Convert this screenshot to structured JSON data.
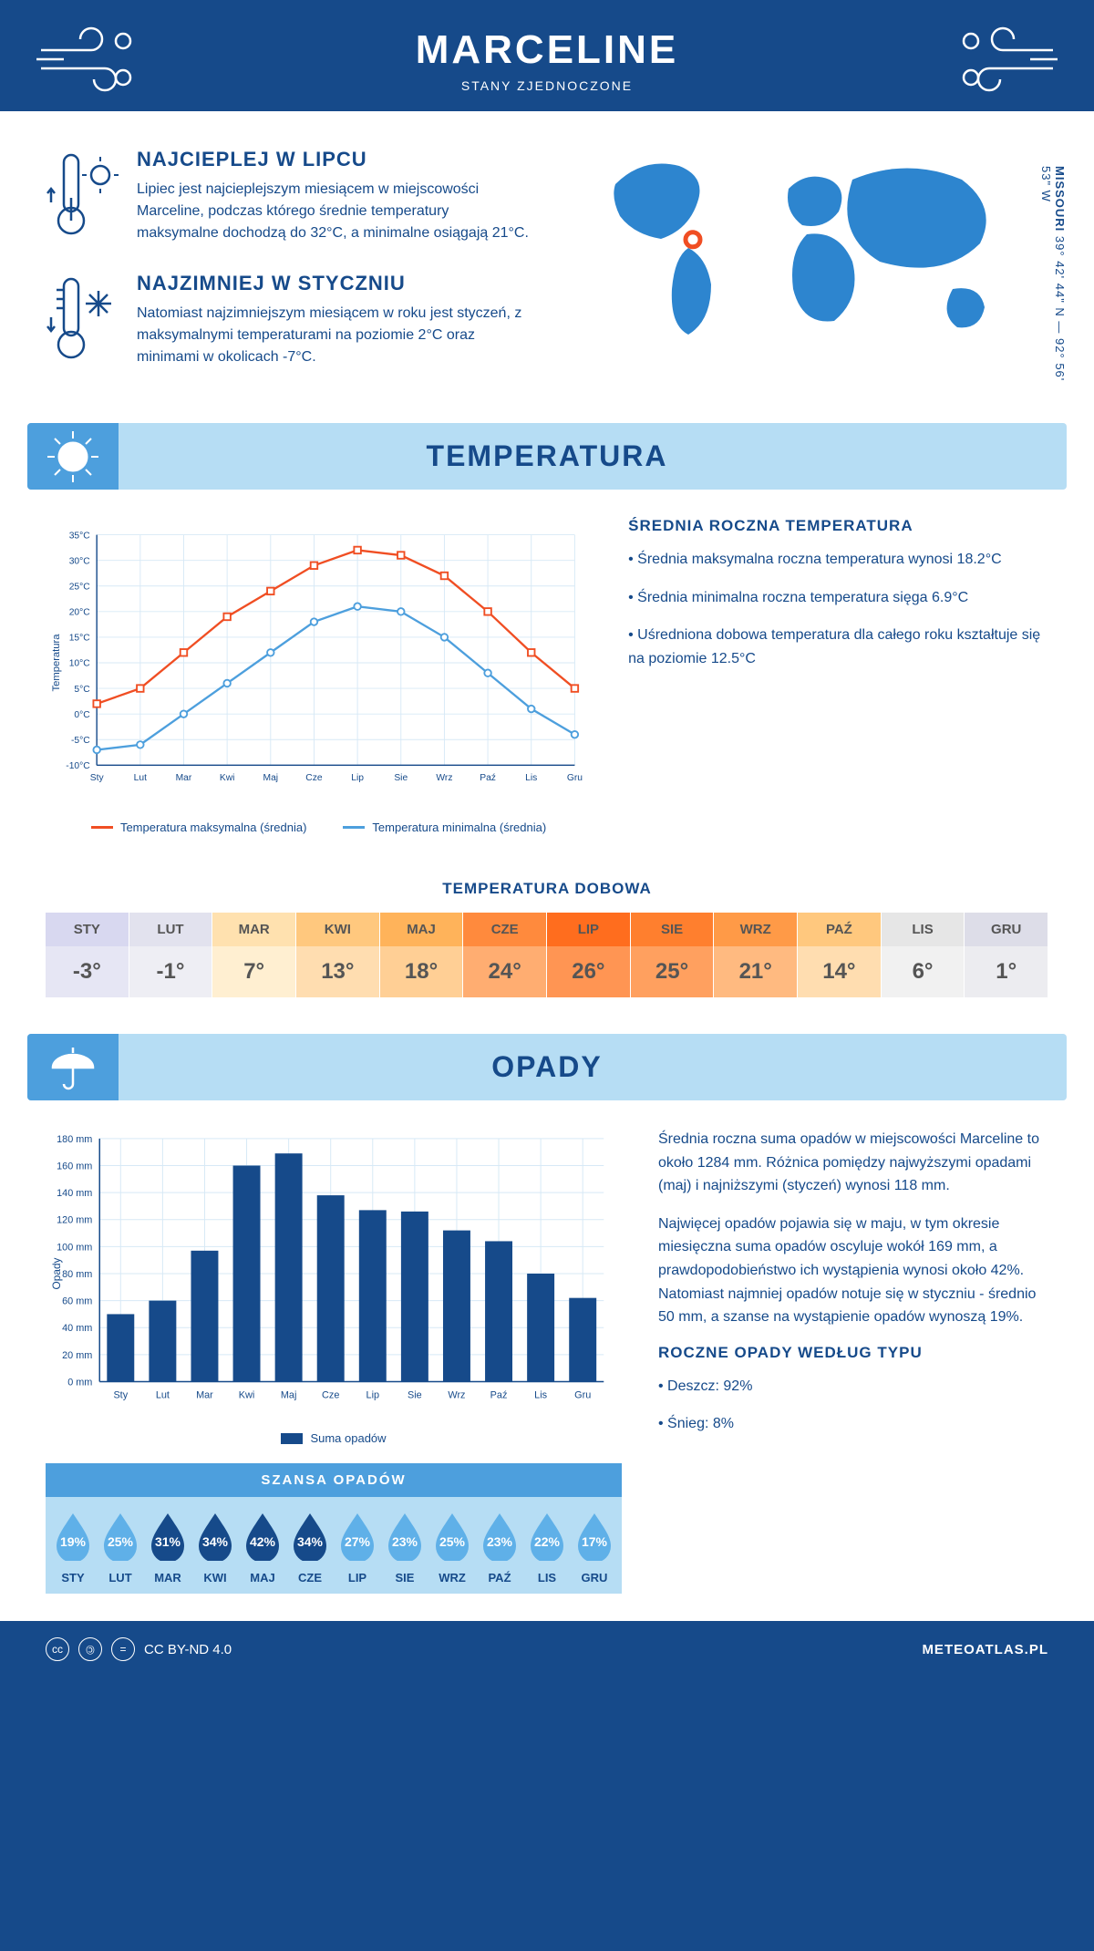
{
  "header": {
    "title": "MARCELINE",
    "subtitle": "STANY ZJEDNOCZONE",
    "swirl_stroke": "#164a8a"
  },
  "location": {
    "state": "MISSOURI",
    "coords": "39° 42' 44\" N — 92° 56' 53\" W",
    "marker": {
      "cx_pct": 25,
      "cy_pct": 42
    },
    "map_fill": "#2d85cf"
  },
  "intro": {
    "hot": {
      "title": "NAJCIEPLEJ W LIPCU",
      "body": "Lipiec jest najcieplejszym miesiącem w miejscowości Marceline, podczas którego średnie temperatury maksymalne dochodzą do 32°C, a minimalne osiągają 21°C."
    },
    "cold": {
      "title": "NAJZIMNIEJ W STYCZNIU",
      "body": "Natomiast najzimniejszym miesiącem w roku jest styczeń, z maksymalnymi temperaturami na poziomie 2°C oraz minimami w okolicach -7°C."
    }
  },
  "temperature": {
    "section_title": "TEMPERATURA",
    "summary_title": "ŚREDNIA ROCZNA TEMPERATURA",
    "bullets": [
      "• Średnia maksymalna roczna temperatura wynosi 18.2°C",
      "• Średnia minimalna roczna temperatura sięga 6.9°C",
      "• Uśredniona dobowa temperatura dla całego roku kształtuje się na poziomie 12.5°C"
    ],
    "chart": {
      "type": "line",
      "months": [
        "Sty",
        "Lut",
        "Mar",
        "Kwi",
        "Maj",
        "Cze",
        "Lip",
        "Sie",
        "Wrz",
        "Paź",
        "Lis",
        "Gru"
      ],
      "y_label": "Temperatura",
      "ylim": [
        -10,
        35
      ],
      "ytick_step": 5,
      "y_unit": "°C",
      "grid_color": "#d7e9f6",
      "axis_color": "#164a8a",
      "label_fontsize": 11,
      "series": [
        {
          "name": "Temperatura maksymalna (średnia)",
          "color": "#f04e23",
          "marker": "square",
          "values": [
            2,
            5,
            12,
            19,
            24,
            29,
            32,
            31,
            27,
            20,
            12,
            5
          ]
        },
        {
          "name": "Temperatura minimalna (średnia)",
          "color": "#4d9fdd",
          "marker": "circle",
          "values": [
            -7,
            -6,
            0,
            6,
            12,
            18,
            21,
            20,
            15,
            8,
            1,
            -4
          ]
        }
      ]
    },
    "dobowa": {
      "title": "TEMPERATURA DOBOWA",
      "months": [
        "STY",
        "LUT",
        "MAR",
        "KWI",
        "MAJ",
        "CZE",
        "LIP",
        "SIE",
        "WRZ",
        "PAŹ",
        "LIS",
        "GRU"
      ],
      "temps_label": [
        "-3°",
        "-1°",
        "7°",
        "13°",
        "18°",
        "24°",
        "26°",
        "25°",
        "21°",
        "14°",
        "6°",
        "1°"
      ],
      "month_bg": [
        "#d8d8f0",
        "#e2e2ee",
        "#ffe1af",
        "#ffc87e",
        "#ffb35a",
        "#ff8a3d",
        "#ff6d1e",
        "#ff7f2e",
        "#ff9a47",
        "#ffc87e",
        "#e6e6e6",
        "#dddde8"
      ],
      "temp_bg": [
        "#e6e6f4",
        "#eeeef4",
        "#ffefd1",
        "#ffddb0",
        "#ffcf95",
        "#ffad71",
        "#ff9553",
        "#ffa05f",
        "#ffba80",
        "#ffddb0",
        "#f1f1f1",
        "#ececf0"
      ],
      "text_color": "#555"
    }
  },
  "precipitation": {
    "section_title": "OPADY",
    "summary_p1": "Średnia roczna suma opadów w miejscowości Marceline to około 1284 mm. Różnica pomiędzy najwyższymi opadami (maj) i najniższymi (styczeń) wynosi 118 mm.",
    "summary_p2": "Najwięcej opadów pojawia się w maju, w tym okresie miesięczna suma opadów oscyluje wokół 169 mm, a prawdopodobieństwo ich wystąpienia wynosi około 42%. Natomiast najmniej opadów notuje się w styczniu - średnio 50 mm, a szanse na wystąpienie opadów wynoszą 19%.",
    "chart": {
      "type": "bar",
      "months": [
        "Sty",
        "Lut",
        "Mar",
        "Kwi",
        "Maj",
        "Cze",
        "Lip",
        "Sie",
        "Wrz",
        "Paź",
        "Lis",
        "Gru"
      ],
      "y_label": "Opady",
      "ylim": [
        0,
        180
      ],
      "ytick_step": 20,
      "y_unit": " mm",
      "bar_color": "#164a8a",
      "grid_color": "#d7e9f6",
      "axis_color": "#164a8a",
      "bar_width": 0.65,
      "values": [
        50,
        60,
        97,
        160,
        169,
        138,
        127,
        126,
        112,
        104,
        80,
        62
      ],
      "legend_label": "Suma opadów"
    },
    "chance": {
      "title": "SZANSA OPADÓW",
      "months": [
        "STY",
        "LUT",
        "MAR",
        "KWI",
        "MAJ",
        "CZE",
        "LIP",
        "SIE",
        "WRZ",
        "PAŹ",
        "LIS",
        "GRU"
      ],
      "pct": [
        19,
        25,
        31,
        34,
        42,
        34,
        27,
        23,
        25,
        23,
        22,
        17
      ],
      "light_fill": "#5fb0e8",
      "dark_fill": "#164a8a",
      "threshold": 30
    },
    "by_type": {
      "title": "ROCZNE OPADY WEDŁUG TYPU",
      "items": [
        "• Deszcz: 92%",
        "• Śnieg: 8%"
      ]
    }
  },
  "footer": {
    "license": "CC BY-ND 4.0",
    "site": "METEOATLAS.PL"
  }
}
